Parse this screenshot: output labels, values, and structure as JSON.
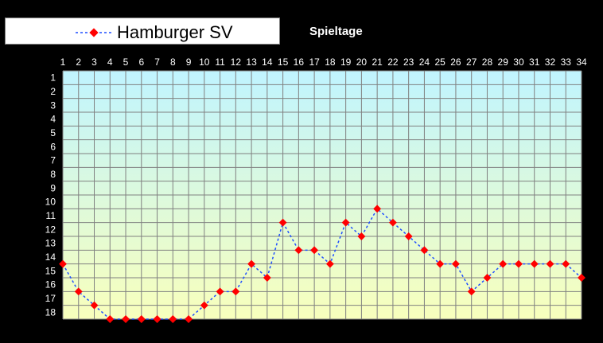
{
  "chart_data": {
    "type": "line",
    "title": "Spieltage",
    "x": [
      1,
      2,
      3,
      4,
      5,
      6,
      7,
      8,
      9,
      10,
      11,
      12,
      13,
      14,
      15,
      16,
      17,
      18,
      19,
      20,
      21,
      22,
      23,
      24,
      25,
      26,
      27,
      28,
      29,
      30,
      31,
      32,
      33,
      34
    ],
    "series": [
      {
        "name": "Hamburger SV",
        "values": [
          14,
          16,
          17,
          18,
          18,
          18,
          18,
          18,
          18,
          17,
          16,
          16,
          14,
          15,
          11,
          13,
          13,
          14,
          11,
          12,
          10,
          11,
          12,
          13,
          14,
          14,
          16,
          15,
          14,
          14,
          14,
          14,
          14,
          15
        ]
      }
    ],
    "y_ticks": [
      1,
      2,
      3,
      4,
      5,
      6,
      7,
      8,
      9,
      10,
      11,
      12,
      13,
      14,
      15,
      16,
      17,
      18
    ],
    "ylim": [
      1,
      18
    ],
    "y_inverted": true,
    "x_axis_position": "top",
    "grid": true,
    "legend_position": "top-left",
    "colors": {
      "line": "#1f4fff",
      "marker": "#ff0000",
      "grid": "#808080",
      "background_top": "#c0f4ff",
      "background_bottom": "#f8ffbc",
      "page": "#000000",
      "text": "#ffffff"
    }
  }
}
